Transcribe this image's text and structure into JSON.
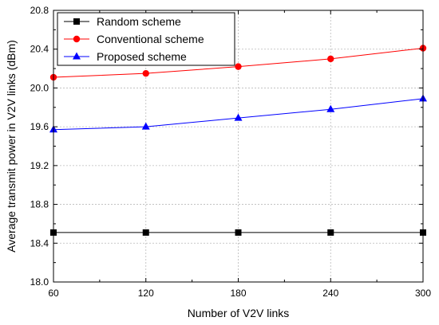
{
  "chart_data": {
    "type": "line",
    "xlabel": "Number of V2V links",
    "ylabel": "Average transmit power in V2V links (dBm)",
    "x": [
      60,
      120,
      180,
      240,
      300
    ],
    "xlim": [
      60,
      300
    ],
    "ylim": [
      18.0,
      20.8
    ],
    "xticks": [
      "60",
      "120",
      "180",
      "240",
      "300"
    ],
    "yticks": [
      "18.0",
      "18.4",
      "18.8",
      "19.2",
      "19.6",
      "20.0",
      "20.4",
      "20.8"
    ],
    "grid": true,
    "legend_position": "top-left",
    "series": [
      {
        "name": "Random scheme",
        "values": [
          18.51,
          18.51,
          18.51,
          18.51,
          18.51
        ],
        "color": "#000000",
        "marker": "square"
      },
      {
        "name": "Conventional scheme",
        "values": [
          20.11,
          20.15,
          20.22,
          20.3,
          20.41
        ],
        "color": "#ff0000",
        "marker": "circle"
      },
      {
        "name": "Proposed scheme",
        "values": [
          19.57,
          19.6,
          19.69,
          19.78,
          19.89
        ],
        "color": "#0000ff",
        "marker": "triangle"
      }
    ]
  }
}
